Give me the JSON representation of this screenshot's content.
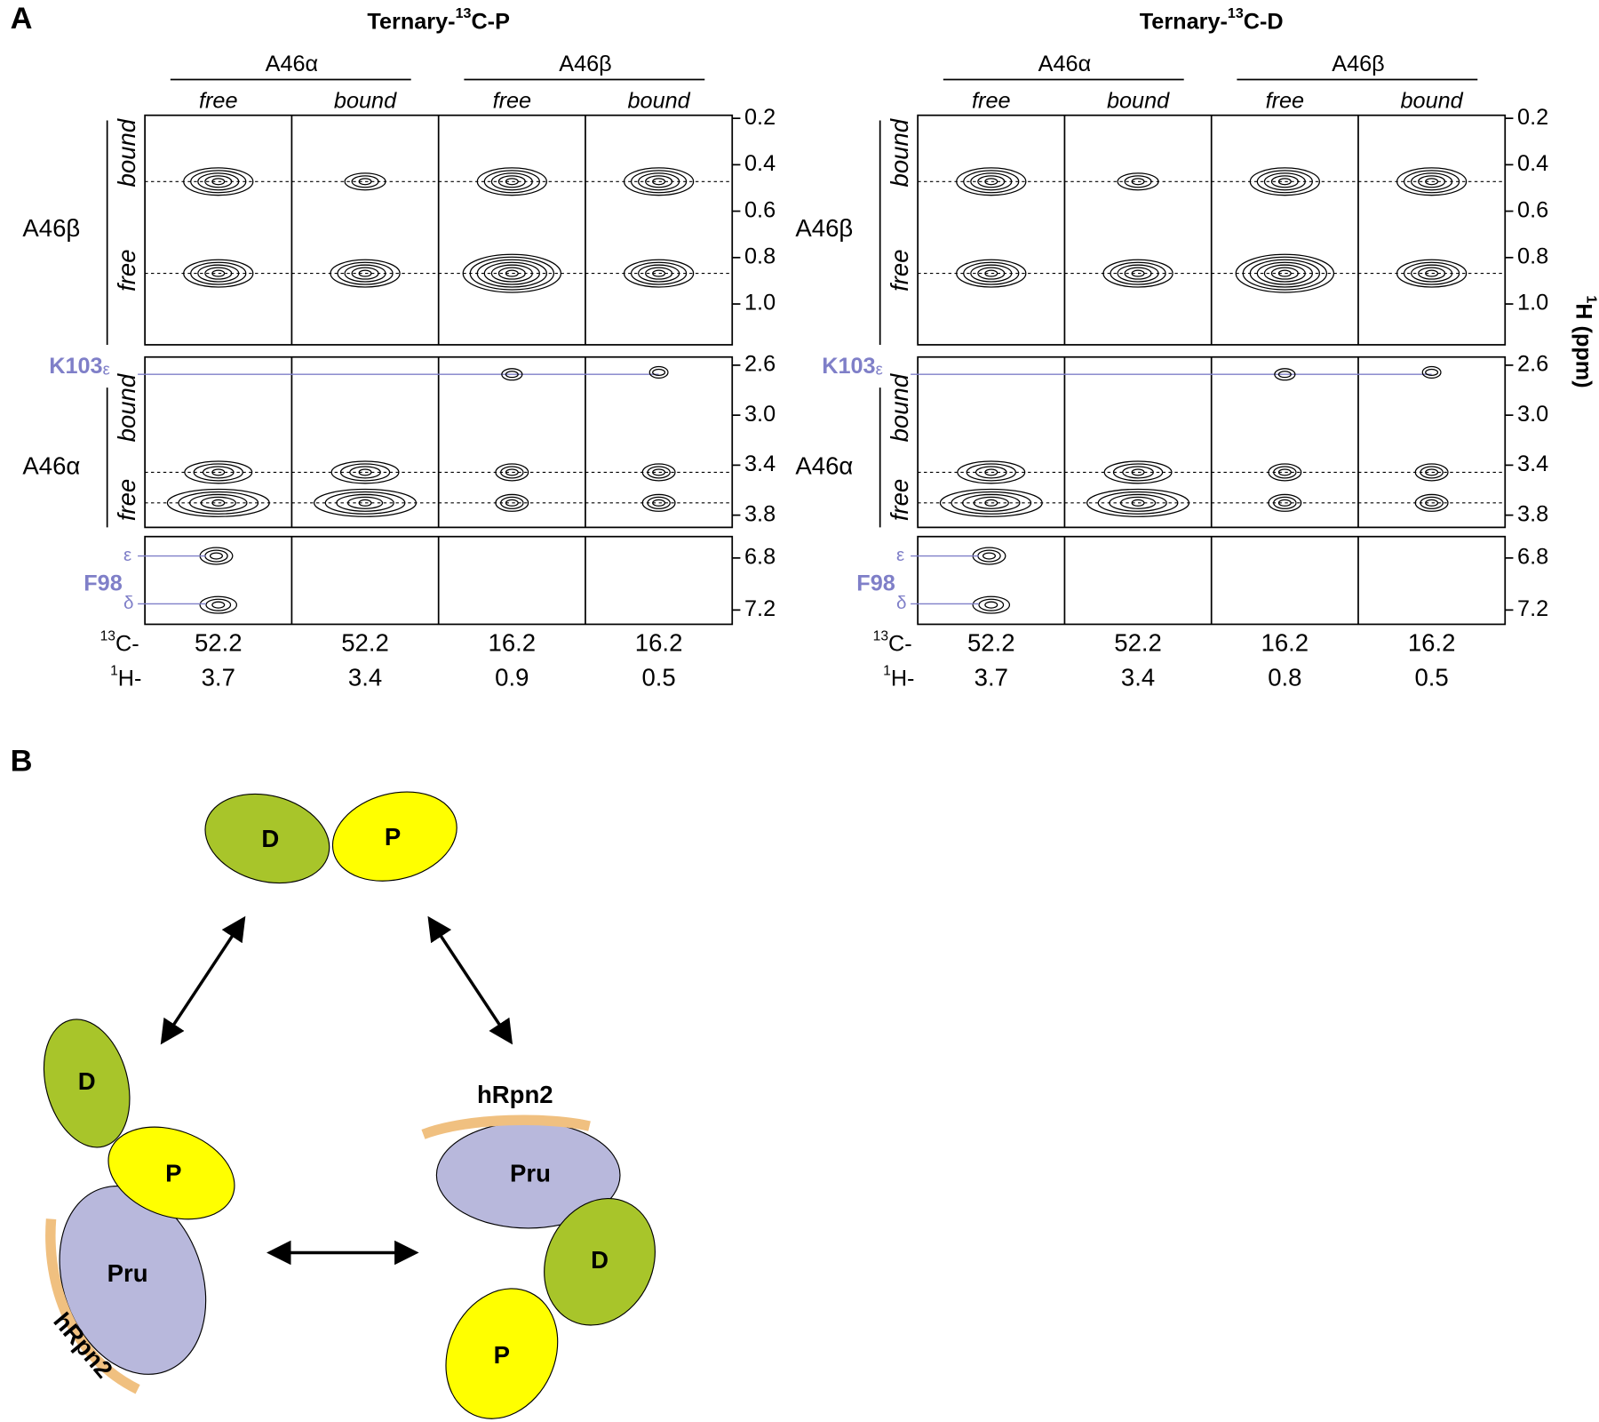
{
  "panel_a": {
    "label": "A",
    "axis_label": {
      "isotope": "1",
      "rest": "H (ppm)"
    },
    "spectra": [
      {
        "title": {
          "prefix": "Ternary-",
          "isotope": "13",
          "suffix": "C-P"
        },
        "groups": [
          {
            "name": "A46α",
            "columns": [
              "free",
              "bound"
            ]
          },
          {
            "name": "A46β",
            "columns": [
              "free",
              "bound"
            ]
          }
        ],
        "rows": [
          {
            "label": "A46β",
            "states": [
              "bound",
              "free"
            ],
            "ticks": [
              "0.2",
              "0.4",
              "0.6",
              "0.8",
              "1.0"
            ]
          },
          {
            "label": "A46α",
            "states": [
              "bound",
              "free"
            ],
            "marker": {
              "residue": "K103",
              "atom": "ε"
            },
            "ticks": [
              "2.6",
              "3.0",
              "3.4",
              "3.8"
            ]
          },
          {
            "marker": {
              "residue": "F98",
              "atoms": [
                "ε",
                "δ"
              ]
            },
            "ticks": [
              "6.8",
              "7.2"
            ]
          }
        ],
        "shifts": {
          "carbon_prefix": {
            "isotope": "13",
            "rest": "C-"
          },
          "proton_prefix": {
            "isotope": "1",
            "rest": "H-"
          },
          "carbon": [
            "52.2",
            "52.2",
            "16.2",
            "16.2"
          ],
          "proton": [
            "3.7",
            "3.4",
            "0.9",
            "0.5"
          ]
        }
      },
      {
        "title": {
          "prefix": "Ternary-",
          "isotope": "13",
          "suffix": "C-D"
        },
        "groups": [
          {
            "name": "A46α",
            "columns": [
              "free",
              "bound"
            ]
          },
          {
            "name": "A46β",
            "columns": [
              "free",
              "bound"
            ]
          }
        ],
        "rows": [
          {
            "label": "A46β",
            "states": [
              "bound",
              "free"
            ],
            "ticks": [
              "0.2",
              "0.4",
              "0.6",
              "0.8",
              "1.0"
            ]
          },
          {
            "label": "A46α",
            "states": [
              "bound",
              "free"
            ],
            "marker": {
              "residue": "K103",
              "atom": "ε"
            },
            "ticks": [
              "2.6",
              "3.0",
              "3.4",
              "3.8"
            ]
          },
          {
            "marker": {
              "residue": "F98",
              "atoms": [
                "ε",
                "δ"
              ]
            },
            "ticks": [
              "6.8",
              "7.2"
            ]
          }
        ],
        "shifts": {
          "carbon_prefix": {
            "isotope": "13",
            "rest": "C-"
          },
          "proton_prefix": {
            "isotope": "1",
            "rest": "H-"
          },
          "carbon": [
            "52.2",
            "52.2",
            "16.2",
            "16.2"
          ],
          "proton": [
            "3.7",
            "3.4",
            "0.8",
            "0.5"
          ]
        }
      }
    ]
  },
  "panel_b": {
    "label": "B",
    "states": [
      {
        "domains": [
          "D",
          "P"
        ]
      },
      {
        "domains": [
          "D",
          "P",
          "Pru"
        ],
        "partner": "hRpn2"
      },
      {
        "domains": [
          "Pru",
          "D",
          "P"
        ],
        "partner": "hRpn2"
      }
    ]
  }
}
